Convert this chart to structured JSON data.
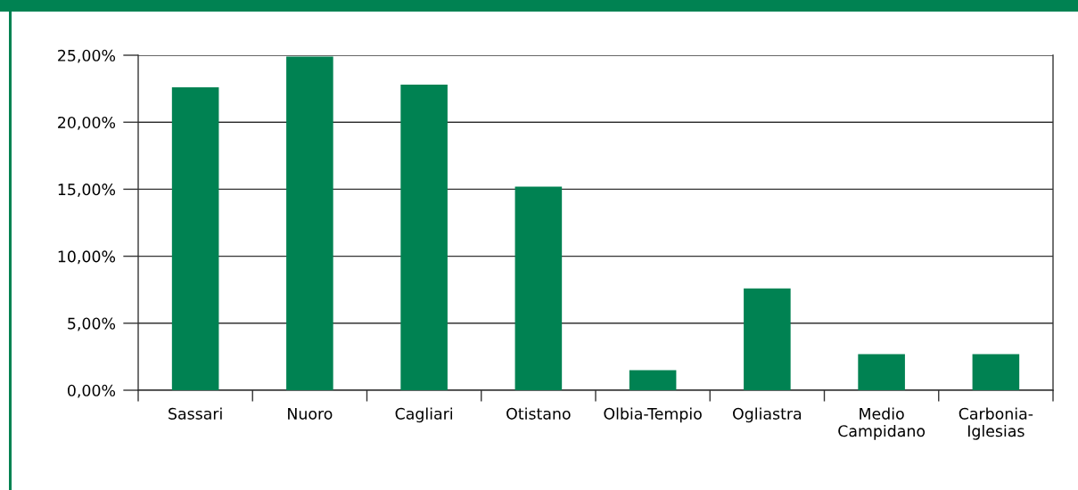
{
  "chart_data": {
    "type": "bar",
    "categories": [
      "Sassari",
      "Nuoro",
      "Cagliari",
      "Otistano",
      "Olbia-Tempio",
      "Ogliastra",
      "Medio\nCampidano",
      "Carbonia-\nIglesias"
    ],
    "values": [
      22.6,
      24.9,
      22.8,
      15.2,
      1.5,
      7.6,
      2.7,
      2.7
    ],
    "color": "#008252",
    "ylim": [
      0,
      25
    ],
    "yticks": [
      {
        "value": 0,
        "label": "0,00%"
      },
      {
        "value": 5,
        "label": "5,00%"
      },
      {
        "value": 10,
        "label": "10,00%"
      },
      {
        "value": 15,
        "label": "15,00%"
      },
      {
        "value": 20,
        "label": "20,00%"
      },
      {
        "value": 25,
        "label": "25,00%"
      }
    ],
    "grid": "y"
  }
}
